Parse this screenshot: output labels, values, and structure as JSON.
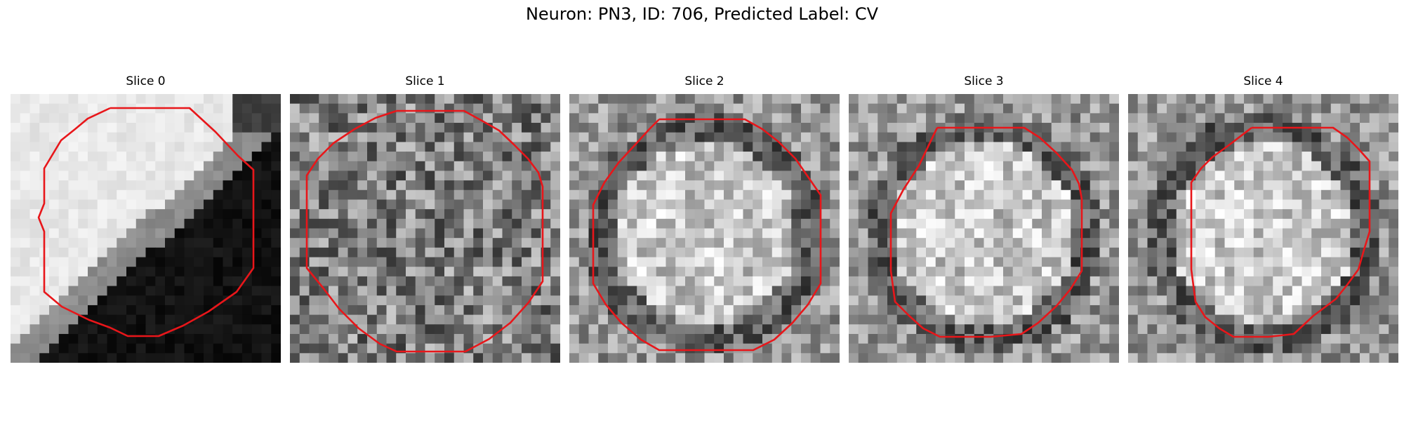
{
  "figure": {
    "title": "Neuron: PN3, ID: 706, Predicted Label: CV"
  },
  "panels": [
    {
      "title": "Slice 0",
      "pattern": "bright-top-left-dark-bottom-right",
      "contour_color": "#e8161a"
    },
    {
      "title": "Slice 1",
      "pattern": "noisy-gray",
      "contour_color": "#e8161a"
    },
    {
      "title": "Slice 2",
      "pattern": "bright-disk-dark-ring",
      "contour_color": "#e8161a"
    },
    {
      "title": "Slice 3",
      "pattern": "bright-disk-dark-ring",
      "contour_color": "#e8161a"
    },
    {
      "title": "Slice 4",
      "pattern": "bright-disk-dark-ring",
      "contour_color": "#e8161a"
    }
  ]
}
